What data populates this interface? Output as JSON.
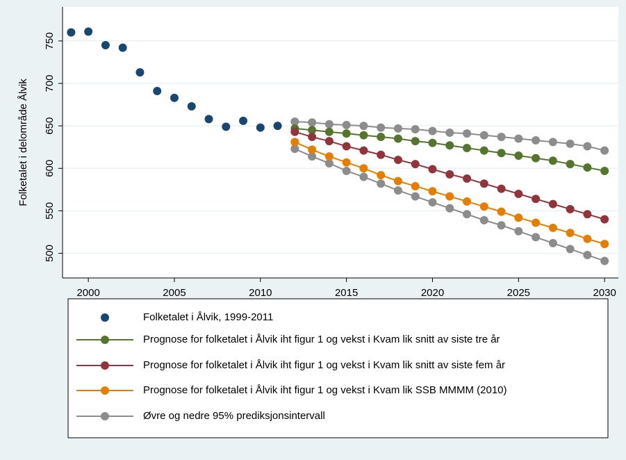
{
  "chart_data": {
    "type": "line",
    "y_label": "Folketalet i delområde Ålvik",
    "xlim": [
      1998.5,
      2030.8
    ],
    "xticks": [
      2000,
      2005,
      2010,
      2015,
      2020,
      2025,
      2030
    ],
    "ylim": [
      471,
      790
    ],
    "yticks": [
      500,
      550,
      600,
      650,
      700,
      750
    ],
    "grid": true,
    "series": [
      {
        "name": "Folketalet i Ålvik, 1999-2011",
        "color": "#1a476f",
        "connected": false,
        "x": [
          1999,
          2000,
          2001,
          2002,
          2003,
          2004,
          2005,
          2006,
          2007,
          2008,
          2009,
          2010,
          2011
        ],
        "values": [
          760,
          761,
          745,
          742,
          713,
          691,
          683,
          673,
          658,
          649,
          656,
          648,
          650
        ]
      },
      {
        "name": "Prognose for folketalet i Ålvik iht figur 1 og vekst i Kvam lik snitt av siste tre år",
        "color": "#55752f",
        "connected": true,
        "x": [
          2012,
          2013,
          2014,
          2015,
          2016,
          2017,
          2018,
          2019,
          2020,
          2021,
          2022,
          2023,
          2024,
          2025,
          2026,
          2027,
          2028,
          2029,
          2030
        ],
        "values": [
          647,
          645,
          643,
          641,
          639,
          637,
          635,
          632,
          630,
          627,
          624,
          621,
          618,
          615,
          612,
          609,
          605,
          601,
          597
        ]
      },
      {
        "name": "Prognose for folketalet i Ålvik iht figur 1 og vekst i Kvam lik snitt av siste fem år",
        "color": "#90353b",
        "connected": true,
        "x": [
          2012,
          2013,
          2014,
          2015,
          2016,
          2017,
          2018,
          2019,
          2020,
          2021,
          2022,
          2023,
          2024,
          2025,
          2026,
          2027,
          2028,
          2029,
          2030
        ],
        "values": [
          643,
          637,
          632,
          626,
          621,
          616,
          610,
          605,
          599,
          593,
          588,
          582,
          576,
          570,
          564,
          558,
          552,
          546,
          540
        ]
      },
      {
        "name": "Prognose for folketalet i Ålvik iht figur 1 og vekst i Kvam lik SSB MMMM (2010)",
        "color": "#e37e00",
        "connected": true,
        "x": [
          2012,
          2013,
          2014,
          2015,
          2016,
          2017,
          2018,
          2019,
          2020,
          2021,
          2022,
          2023,
          2024,
          2025,
          2026,
          2027,
          2028,
          2029,
          2030
        ],
        "values": [
          631,
          622,
          614,
          607,
          600,
          592,
          585,
          579,
          573,
          567,
          561,
          555,
          549,
          542,
          536,
          530,
          524,
          517,
          511
        ]
      }
    ],
    "interval": {
      "name": "Øvre og nedre 95% prediksjonsintervall",
      "color": "#8c8c8c",
      "x": [
        2012,
        2013,
        2014,
        2015,
        2016,
        2017,
        2018,
        2019,
        2020,
        2021,
        2022,
        2023,
        2024,
        2025,
        2026,
        2027,
        2028,
        2029,
        2030
      ],
      "upper": [
        655,
        654,
        652,
        651,
        650,
        648,
        647,
        646,
        644,
        642,
        641,
        639,
        637,
        635,
        633,
        631,
        629,
        626,
        621
      ],
      "lower": [
        623,
        614,
        606,
        597,
        590,
        582,
        574,
        567,
        560,
        553,
        546,
        539,
        533,
        526,
        519,
        512,
        505,
        498,
        491
      ]
    }
  }
}
